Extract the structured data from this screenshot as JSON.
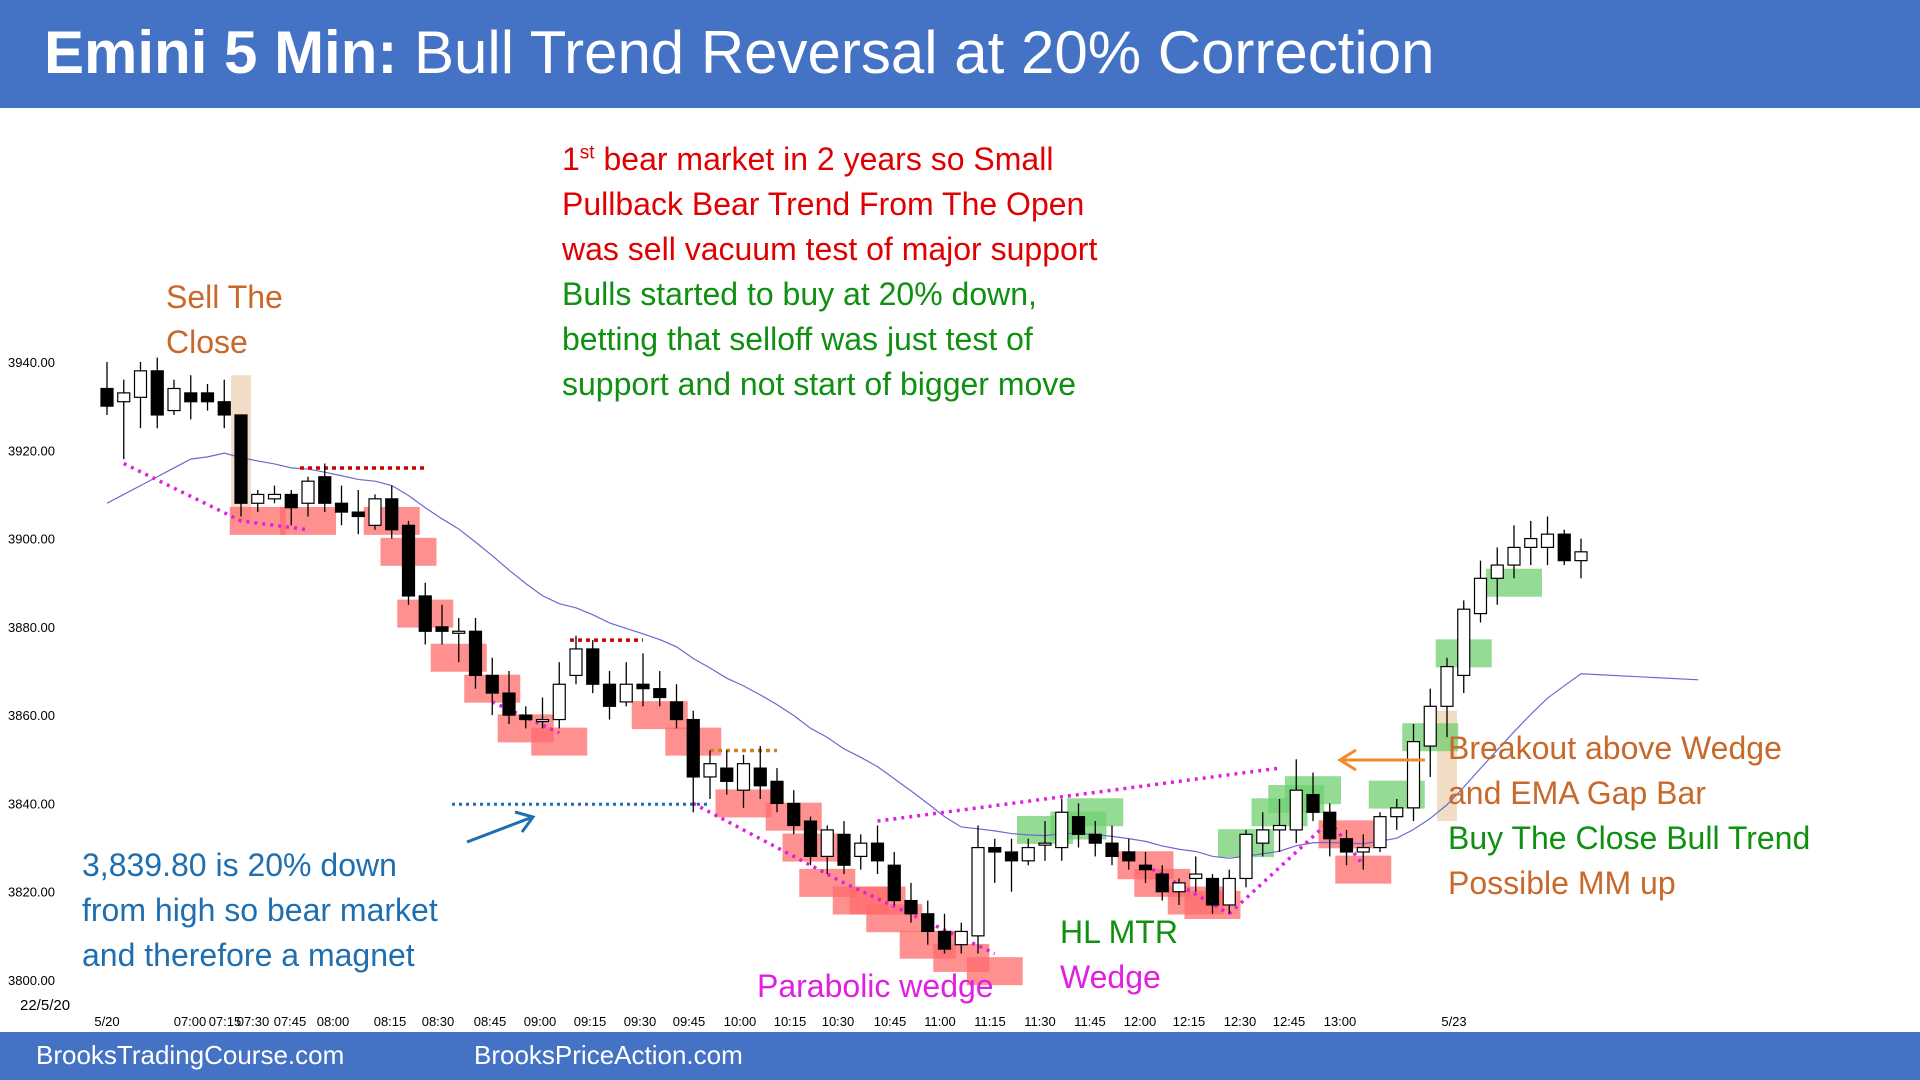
{
  "title": {
    "bold": "Emini 5 Min:",
    "rest": "Bull Trend Reversal at 20% Correction"
  },
  "footer": {
    "left": "BrooksTradingCourse.com",
    "right": "BrooksPriceAction.com"
  },
  "colors": {
    "bar_bg": "#4472c4",
    "bear_box": "#ff6b6b",
    "bull_box": "#70d070",
    "signal_box": "#f0d8c0",
    "ema": "#6a6ad0",
    "wedge": "#e020e0",
    "red_annot": "#e00000",
    "green_annot": "#109010",
    "orange_annot": "#c8682a",
    "blue_annot": "#1f6fb0",
    "arrow_orange": "#f08c28"
  },
  "annotations": {
    "sell_close": [
      "Sell The",
      "Close"
    ],
    "main_red": {
      "sup_prefix": "1",
      "sup": "st",
      "line1_rest": " bear market in 2 years so Small",
      "line2": "Pullback Bear Trend From The Open",
      "line3": "was sell vacuum test of major support"
    },
    "main_green": [
      "Bulls started to buy at 20% down,",
      "betting that selloff was just test of",
      "support and not start of bigger move"
    ],
    "magnet": [
      "3,839.80 is 20% down",
      "from high so bear market",
      "and therefore a magnet"
    ],
    "parabolic": "Parabolic wedge",
    "hl_mtr": "HL MTR",
    "wedge": "Wedge",
    "breakout": [
      "Breakout above Wedge",
      "and EMA Gap Bar"
    ],
    "buy_close": "Buy The Close Bull Trend",
    "mm_up": "Possible MM up"
  },
  "chart_data": {
    "type": "candlestick",
    "date_label": "22/5/20",
    "y_ticks": [
      "3940.00",
      "3920.00",
      "3900.00",
      "3880.00",
      "3860.00",
      "3840.00",
      "3820.00",
      "3800.00"
    ],
    "ylim": [
      3800,
      3940
    ],
    "x_ticks": [
      "5/20",
      "07:00",
      "07:15",
      "07:30",
      "07:45",
      "08:00",
      "08:15",
      "08:30",
      "08:45",
      "09:00",
      "09:15",
      "09:30",
      "09:45",
      "10:00",
      "10:15",
      "10:30",
      "10:45",
      "11:00",
      "11:15",
      "11:30",
      "11:45",
      "12:00",
      "12:15",
      "12:30",
      "12:45",
      "13:00",
      "5/23"
    ],
    "magnet_level": 3839.8,
    "candles": [
      [
        3934,
        3940,
        3928,
        3930
      ],
      [
        3931,
        3936,
        3918,
        3933
      ],
      [
        3932,
        3940,
        3925,
        3938
      ],
      [
        3938,
        3941,
        3925,
        3928
      ],
      [
        3929,
        3936,
        3928,
        3934
      ],
      [
        3933,
        3937,
        3927,
        3931
      ],
      [
        3933,
        3935,
        3929,
        3931
      ],
      [
        3931,
        3936,
        3925,
        3928
      ],
      [
        3928,
        3928,
        3905,
        3908
      ],
      [
        3908,
        3911,
        3906,
        3910
      ],
      [
        3909,
        3912,
        3908,
        3910
      ],
      [
        3910,
        3911,
        3903,
        3907
      ],
      [
        3908,
        3914,
        3905,
        3913
      ],
      [
        3914,
        3917,
        3906,
        3908
      ],
      [
        3908,
        3912,
        3903,
        3906
      ],
      [
        3906,
        3911,
        3901,
        3905
      ],
      [
        3903,
        3910,
        3902,
        3909
      ],
      [
        3909,
        3912,
        3900,
        3902
      ],
      [
        3903,
        3904,
        3885,
        3887
      ],
      [
        3887,
        3890,
        3876,
        3879
      ],
      [
        3880,
        3885,
        3876,
        3879
      ],
      [
        3879,
        3882,
        3872,
        3879
      ],
      [
        3879,
        3882,
        3866,
        3869
      ],
      [
        3869,
        3873,
        3860,
        3865
      ],
      [
        3865,
        3870,
        3858,
        3860
      ],
      [
        3860,
        3862,
        3857,
        3859
      ],
      [
        3859,
        3864,
        3857,
        3859
      ],
      [
        3859,
        3872,
        3857,
        3867
      ],
      [
        3869,
        3878,
        3867,
        3875
      ],
      [
        3875,
        3877,
        3865,
        3867
      ],
      [
        3867,
        3870,
        3859,
        3862
      ],
      [
        3863,
        3872,
        3862,
        3867
      ],
      [
        3867,
        3874,
        3862,
        3866
      ],
      [
        3866,
        3870,
        3862,
        3864
      ],
      [
        3863,
        3867,
        3857,
        3859
      ],
      [
        3859,
        3861,
        3838,
        3846
      ],
      [
        3846,
        3852,
        3841,
        3849
      ],
      [
        3848,
        3852,
        3842,
        3845
      ],
      [
        3843,
        3851,
        3839,
        3849
      ],
      [
        3848,
        3853,
        3841,
        3844
      ],
      [
        3845,
        3848,
        3838,
        3840
      ],
      [
        3840,
        3843,
        3833,
        3835
      ],
      [
        3836,
        3837,
        3826,
        3828
      ],
      [
        3828,
        3835,
        3824,
        3834
      ],
      [
        3833,
        3836,
        3824,
        3826
      ],
      [
        3828,
        3833,
        3825,
        3831
      ],
      [
        3831,
        3835,
        3824,
        3827
      ],
      [
        3826,
        3829,
        3817,
        3818
      ],
      [
        3818,
        3822,
        3813,
        3815
      ],
      [
        3815,
        3818,
        3808,
        3811
      ],
      [
        3811,
        3815,
        3806,
        3807
      ],
      [
        3808,
        3813,
        3806,
        3811
      ],
      [
        3810,
        3835,
        3806,
        3830
      ],
      [
        3830,
        3832,
        3822,
        3829
      ],
      [
        3829,
        3832,
        3820,
        3827
      ],
      [
        3827,
        3832,
        3826,
        3830
      ],
      [
        3831,
        3836,
        3827,
        3831
      ],
      [
        3830,
        3841,
        3827,
        3838
      ],
      [
        3837,
        3840,
        3830,
        3833
      ],
      [
        3833,
        3836,
        3828,
        3831
      ],
      [
        3831,
        3835,
        3826,
        3828
      ],
      [
        3829,
        3832,
        3825,
        3827
      ],
      [
        3826,
        3829,
        3822,
        3825
      ],
      [
        3824,
        3826,
        3818,
        3820
      ],
      [
        3820,
        3823,
        3817,
        3822
      ],
      [
        3823,
        3828,
        3820,
        3824
      ],
      [
        3823,
        3824,
        3815,
        3817
      ],
      [
        3817,
        3825,
        3815,
        3823
      ],
      [
        3823,
        3834,
        3821,
        3833
      ],
      [
        3831,
        3838,
        3828,
        3834
      ],
      [
        3834,
        3841,
        3829,
        3835
      ],
      [
        3834,
        3850,
        3831,
        3843
      ],
      [
        3842,
        3847,
        3836,
        3838
      ],
      [
        3838,
        3840,
        3828,
        3832
      ],
      [
        3832,
        3834,
        3826,
        3829
      ],
      [
        3829,
        3833,
        3825,
        3830
      ],
      [
        3830,
        3838,
        3829,
        3837
      ],
      [
        3837,
        3841,
        3834,
        3839
      ],
      [
        3839,
        3858,
        3836,
        3854
      ],
      [
        3853,
        3866,
        3846,
        3862
      ],
      [
        3862,
        3873,
        3855,
        3871
      ],
      [
        3869,
        3886,
        3865,
        3884
      ],
      [
        3883,
        3895,
        3881,
        3891
      ],
      [
        3891,
        3898,
        3885,
        3894
      ],
      [
        3894,
        3903,
        3891,
        3898
      ],
      [
        3898,
        3904,
        3894,
        3900
      ],
      [
        3898,
        3905,
        3894,
        3901
      ],
      [
        3901,
        3902,
        3894,
        3895
      ],
      [
        3895,
        3900,
        3891,
        3897
      ]
    ]
  }
}
